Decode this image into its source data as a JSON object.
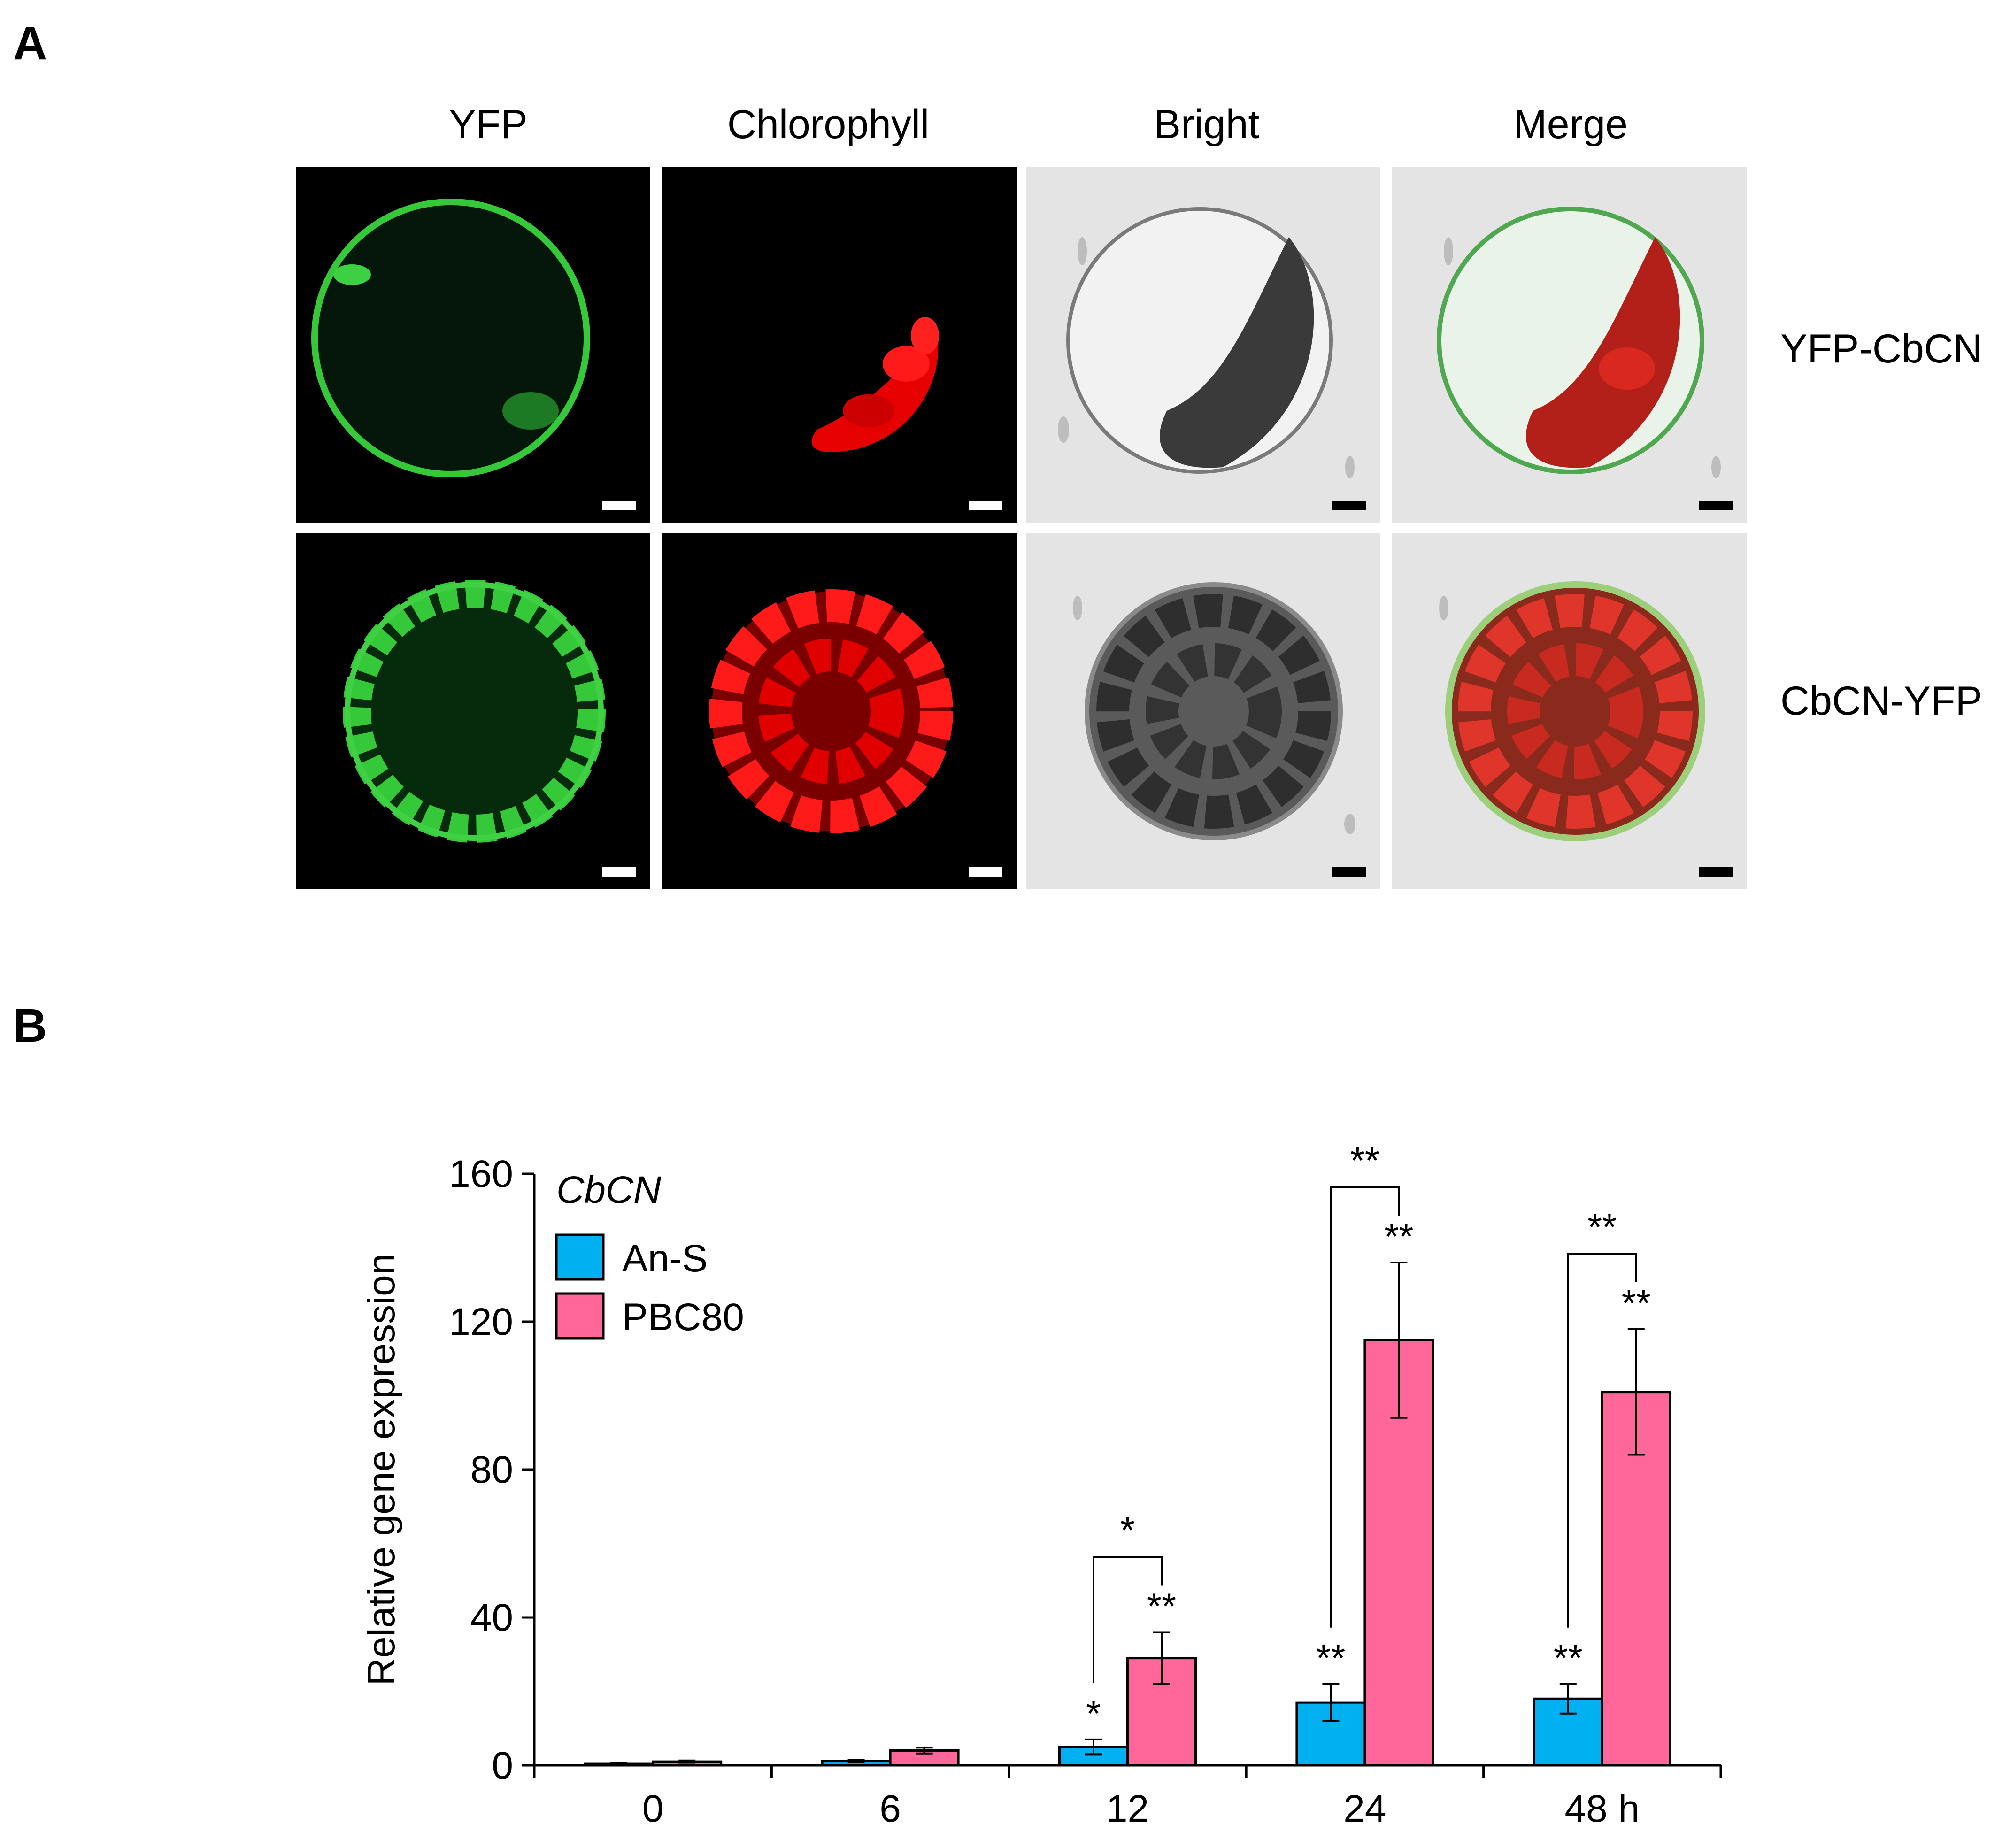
{
  "panel_a": {
    "letter": "A",
    "columns": [
      "YFP",
      "Chlorophyll",
      "Bright",
      "Merge"
    ],
    "rows": [
      "YFP-CbCN",
      "CbCN-YFP"
    ]
  },
  "panel_b": {
    "letter": "B"
  },
  "chart_data": {
    "type": "bar",
    "title": "CbCN",
    "xlabel": "",
    "ylabel": "Relative gene expression",
    "categories": [
      "0",
      "6",
      "12",
      "24",
      "48 h"
    ],
    "ylim": [
      0,
      160
    ],
    "yticks": [
      0,
      40,
      80,
      120,
      160
    ],
    "legend_position": "top-left",
    "grid": false,
    "series": [
      {
        "name": "An-S",
        "color": "#00b0f0",
        "values": [
          0.5,
          1.2,
          5.0,
          17.0,
          18.0
        ],
        "errors": [
          0.2,
          0.3,
          2.0,
          5.0,
          4.0
        ],
        "sig": [
          "",
          "",
          "*",
          "**",
          "**"
        ]
      },
      {
        "name": "PBC80",
        "color": "#ff6699",
        "values": [
          1.0,
          4.0,
          29.0,
          115.0,
          101.0
        ],
        "errors": [
          0.3,
          0.8,
          7.0,
          21.0,
          17.0
        ],
        "sig": [
          "",
          "",
          "**",
          "**",
          "**"
        ]
      }
    ],
    "comparisons": [
      {
        "category": "12",
        "label": "*"
      },
      {
        "category": "24",
        "label": "**"
      },
      {
        "category": "48 h",
        "label": "**"
      }
    ]
  }
}
